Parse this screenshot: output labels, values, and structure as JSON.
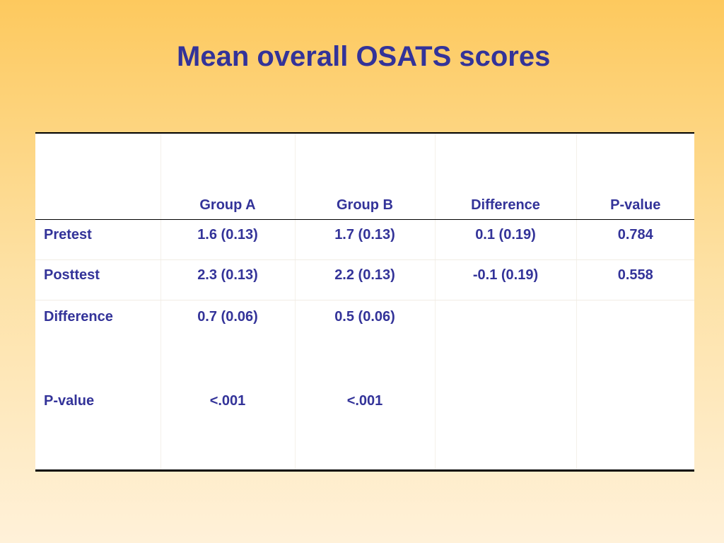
{
  "title": "Mean overall OSATS scores",
  "colors": {
    "text": "#333399",
    "background_top": "#fdc95e",
    "background_bottom": "#fff1d9",
    "table_background": "#ffffff",
    "rule": "#000000"
  },
  "table": {
    "columns": [
      "",
      "Group A",
      "Group B",
      "Difference",
      "P-value"
    ],
    "rows": [
      {
        "label": "Pretest",
        "cells": [
          "1.6 (0.13)",
          "1.7 (0.13)",
          "0.1 (0.19)",
          "0.784"
        ]
      },
      {
        "label": "Posttest",
        "cells": [
          "2.3 (0.13)",
          "2.2 (0.13)",
          "-0.1 (0.19)",
          "0.558"
        ]
      },
      {
        "label": "Difference",
        "cells": [
          "0.7 (0.06)",
          "0.5 (0.06)",
          "",
          ""
        ]
      },
      {
        "label": "P-value",
        "cells": [
          "<.001",
          "<.001",
          "",
          ""
        ]
      }
    ]
  }
}
